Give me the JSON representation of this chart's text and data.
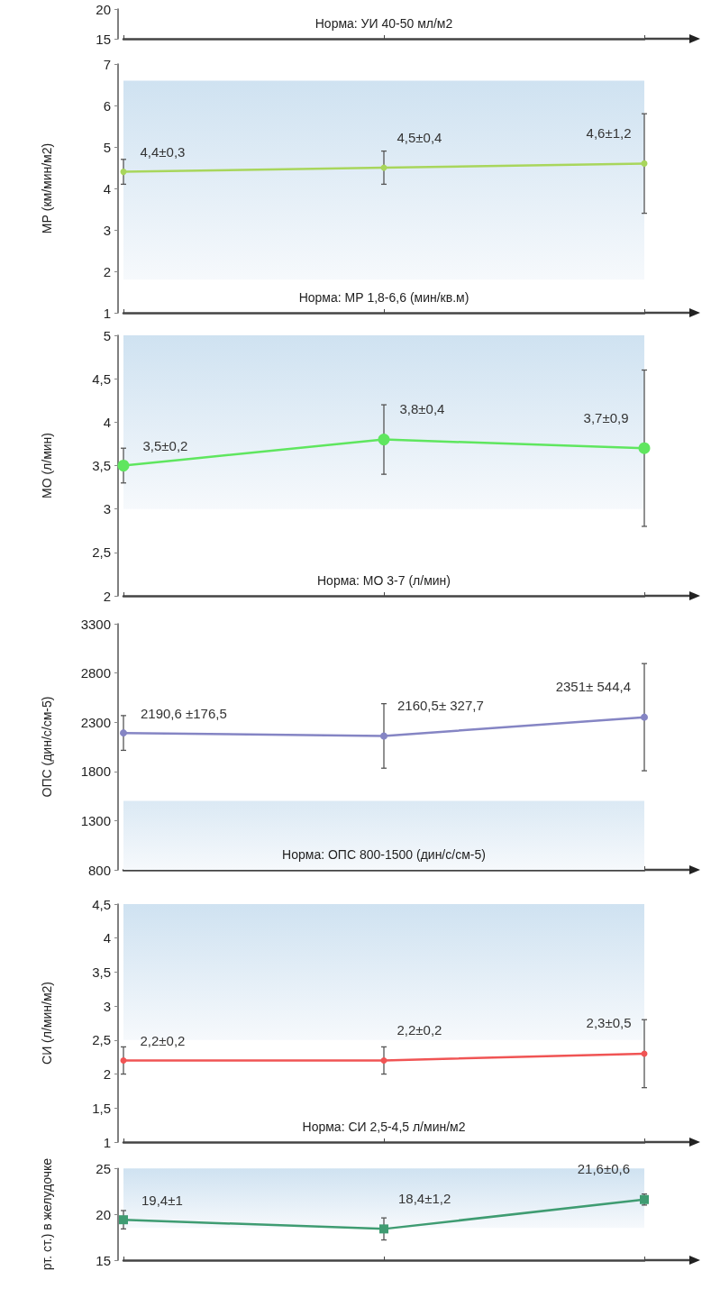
{
  "chart_data": [
    {
      "type": "line",
      "categories": [
        null,
        null,
        null
      ],
      "ylim": [
        15,
        20
      ],
      "yticks": [
        15,
        20
      ],
      "annotations": [
        "Норма: УИ 40-50 мл/м2"
      ]
    },
    {
      "type": "line",
      "categories": [
        null,
        null,
        null
      ],
      "ylabel": "МР (км/мин/м2)",
      "ylim": [
        1,
        7
      ],
      "yticks": [
        1,
        2,
        3,
        4,
        5,
        6,
        7
      ],
      "marker": "circle",
      "bands": [
        {
          "axis": "y",
          "from": 1.8,
          "to": 6.6,
          "color": "#cfe2f1"
        }
      ],
      "annotations": [
        "Норма: МР 1,8-6,6 (мин/кв.м)"
      ],
      "series": [
        {
          "color": "#a8d65c",
          "values": [
            4.4,
            4.5,
            4.6
          ],
          "errors": [
            0.3,
            0.4,
            1.2
          ],
          "value_labels": [
            "4,4±0,3",
            "4,5±0,4",
            "4,6±1,2"
          ]
        }
      ]
    },
    {
      "type": "line",
      "categories": [
        null,
        null,
        null
      ],
      "ylabel": "МО (л/мин)",
      "ylim": [
        2,
        5
      ],
      "yticks": [
        2,
        {
          "value": 2.5,
          "label": "2,5"
        },
        3,
        {
          "value": 3.5,
          "label": "3,5"
        },
        4,
        {
          "value": 4.5,
          "label": "4,5"
        },
        5
      ],
      "marker": "circle",
      "bands": [
        {
          "axis": "y",
          "from": 3,
          "to": 5,
          "color": "#cfe2f1"
        }
      ],
      "annotations": [
        "Норма: МО 3-7 (л/мин)"
      ],
      "series": [
        {
          "color": "#5fe65f",
          "values": [
            3.5,
            3.8,
            3.7
          ],
          "errors": [
            0.2,
            0.4,
            0.9
          ],
          "value_labels": [
            "3,5±0,2",
            "3,8±0,4",
            "3,7±0,9"
          ]
        }
      ]
    },
    {
      "type": "line",
      "categories": [
        null,
        null,
        null
      ],
      "ylabel": "ОПС (дин/с/см-5)",
      "ylim": [
        800,
        3300
      ],
      "yticks": [
        800,
        1300,
        1800,
        2300,
        2800,
        3300
      ],
      "marker": "circle",
      "bands": [
        {
          "axis": "y",
          "from": 800,
          "to": 1500,
          "color": "#dbe9f4"
        }
      ],
      "annotations": [
        "Норма: ОПС 800-1500 (дин/с/см-5)"
      ],
      "series": [
        {
          "color": "#8585c4",
          "values": [
            2190.6,
            2160.5,
            2351
          ],
          "errors": [
            176.5,
            327.7,
            544.4
          ],
          "value_labels": [
            "2190,6 ±176,5",
            "2160,5± 327,7",
            "2351± 544,4"
          ]
        }
      ]
    },
    {
      "type": "line",
      "categories": [
        null,
        null,
        null
      ],
      "ylabel": "СИ (л/мин/м2)",
      "ylim": [
        1,
        4.5
      ],
      "yticks": [
        1,
        {
          "value": 1.5,
          "label": "1,5"
        },
        2,
        {
          "value": 2.5,
          "label": "2,5"
        },
        3,
        {
          "value": 3.5,
          "label": "3,5"
        },
        4,
        {
          "value": 4.5,
          "label": "4,5"
        }
      ],
      "marker": "circle",
      "bands": [
        {
          "axis": "y",
          "from": 2.5,
          "to": 4.5,
          "color": "#cfe2f1"
        }
      ],
      "annotations": [
        "Норма: СИ 2,5-4,5 л/мин/м2"
      ],
      "series": [
        {
          "color": "#f05454",
          "values": [
            2.2,
            2.2,
            2.3
          ],
          "errors": [
            0.2,
            0.2,
            0.5
          ],
          "value_labels": [
            "2,2±0,2",
            "2,2±0,2",
            "2,3±0,5"
          ]
        }
      ]
    },
    {
      "type": "line",
      "categories": [
        null,
        null,
        null
      ],
      "ylabel": "рт. ст.) в желудочке",
      "ylim": [
        15,
        25
      ],
      "yticks": [
        15,
        20,
        25
      ],
      "marker": "square",
      "bands": [
        {
          "axis": "y",
          "from": 18.5,
          "to": 25,
          "color": "#cfe2f1"
        }
      ],
      "series": [
        {
          "color": "#3f9c72",
          "values": [
            19.4,
            18.4,
            21.6
          ],
          "errors": [
            1,
            1.2,
            0.6
          ],
          "value_labels": [
            "19,4±1",
            "18,4±1,2",
            "21,6±0,6"
          ]
        }
      ]
    }
  ]
}
